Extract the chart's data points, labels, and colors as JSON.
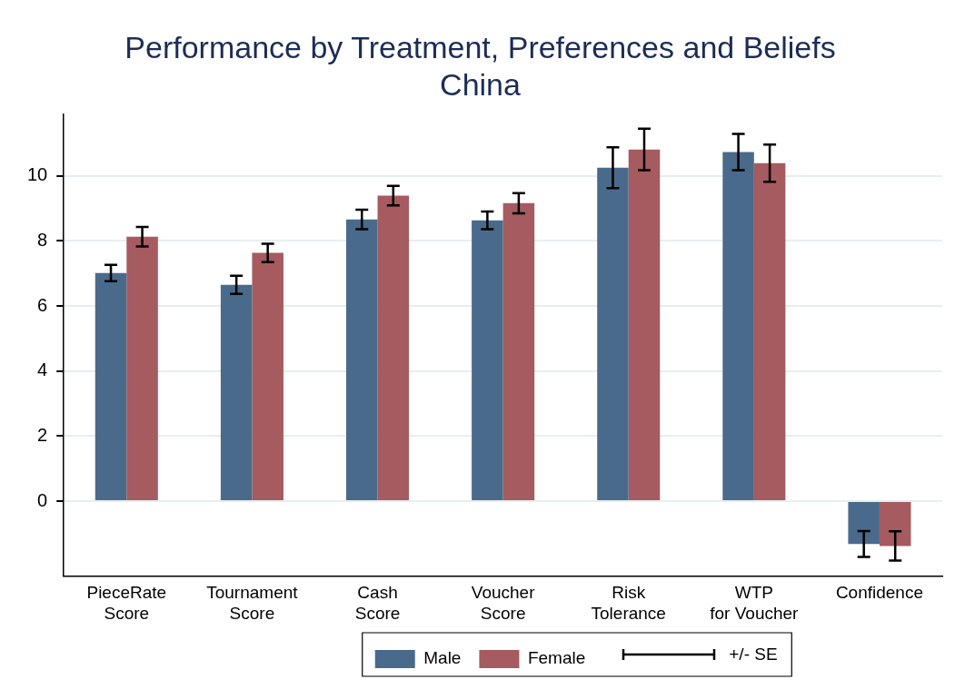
{
  "chart_data": {
    "type": "bar",
    "title": "Performance by Treatment, Preferences and Beliefs",
    "subtitle": "China",
    "categories": [
      "PieceRate\nScore",
      "Tournament\nScore",
      "Cash\nScore",
      "Voucher\nScore",
      "Risk\nTolerance",
      "WTP\nfor Voucher",
      "Confidence"
    ],
    "series": [
      {
        "name": "Male",
        "color": "#4a6a8b",
        "values": [
          7.01,
          6.65,
          8.66,
          8.63,
          10.25,
          10.73,
          -1.32
        ],
        "errors": [
          0.25,
          0.28,
          0.3,
          0.27,
          0.63,
          0.56,
          0.4
        ]
      },
      {
        "name": "Female",
        "color": "#a55b5f",
        "values": [
          8.13,
          7.63,
          9.39,
          9.16,
          10.81,
          10.39,
          -1.38
        ],
        "errors": [
          0.3,
          0.28,
          0.3,
          0.31,
          0.64,
          0.57,
          0.45
        ]
      }
    ],
    "ylim": [
      -2.3,
      11.9
    ],
    "yticks": [
      0,
      2,
      4,
      6,
      8,
      10
    ],
    "grid": "y",
    "legend": "bottom",
    "annotations": [
      "+/- SE"
    ]
  }
}
